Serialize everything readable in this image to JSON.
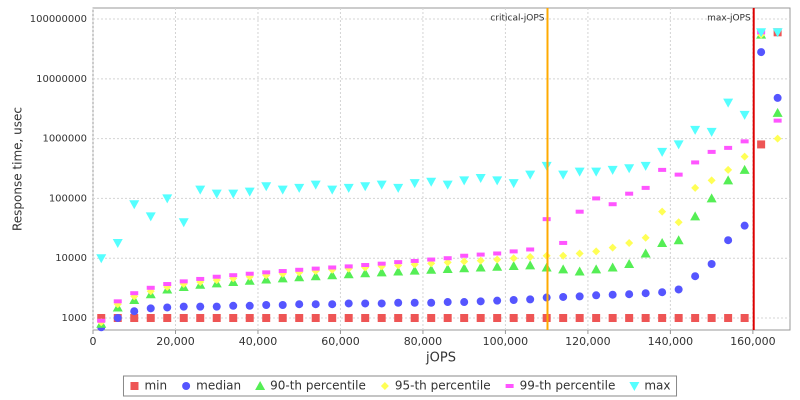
{
  "chart_data": {
    "type": "scatter",
    "y_label": "Response time, usec",
    "x_label": "jOPS",
    "log_y": true,
    "grid": true,
    "legend": "bottom",
    "xlim": [
      0,
      169000
    ],
    "ylim": [
      630,
      153000000
    ],
    "xticks": [
      0,
      {
        "value": 20000,
        "label": "20,000"
      },
      {
        "value": 40000,
        "label": "40,000"
      },
      {
        "value": 60000,
        "label": "60,000"
      },
      {
        "value": 80000,
        "label": "80,000"
      },
      {
        "value": 100000,
        "label": "100,000"
      },
      {
        "value": 120000,
        "label": "120,000"
      },
      {
        "value": 140000,
        "label": "140,000"
      },
      {
        "value": 160000,
        "label": "160,000"
      }
    ],
    "yticks": [
      1000,
      10000,
      100000,
      1000000,
      10000000,
      100000000
    ],
    "annotations": [
      {
        "label": "critical-jOPS",
        "x": 110200,
        "color": "#ffaa00"
      },
      {
        "label": "max-jOPS",
        "x": 160200,
        "color": "#dd0000"
      }
    ],
    "x": [
      2000,
      6000,
      10000,
      14000,
      18000,
      22000,
      26000,
      30000,
      34000,
      38000,
      42000,
      46000,
      50000,
      54000,
      58000,
      62000,
      66000,
      70000,
      74000,
      78000,
      82000,
      86000,
      90000,
      94000,
      98000,
      102000,
      106000,
      110000,
      114000,
      118000,
      122000,
      126000,
      130000,
      134000,
      138000,
      142000,
      146000,
      150000,
      154000,
      158000,
      162000,
      166000
    ],
    "series": [
      {
        "name": "min",
        "color": "#ee5555",
        "marker": "square",
        "values": [
          1000,
          1000,
          1000,
          1000,
          1000,
          1000,
          1000,
          1000,
          1000,
          1000,
          1000,
          1000,
          1000,
          1000,
          1000,
          1000,
          1000,
          1000,
          1000,
          1000,
          1000,
          1000,
          1000,
          1000,
          1000,
          1000,
          1000,
          1000,
          1000,
          1000,
          1000,
          1000,
          1000,
          1000,
          1000,
          1000,
          1000,
          1000,
          1000,
          1000,
          800000,
          60000000
        ]
      },
      {
        "name": "median",
        "color": "#5555ff",
        "marker": "circle",
        "values": [
          700,
          1000,
          1300,
          1450,
          1500,
          1550,
          1550,
          1550,
          1600,
          1600,
          1650,
          1650,
          1700,
          1700,
          1700,
          1750,
          1750,
          1750,
          1800,
          1800,
          1800,
          1850,
          1850,
          1900,
          1950,
          2000,
          2050,
          2200,
          2250,
          2300,
          2400,
          2450,
          2500,
          2600,
          2700,
          3000,
          5000,
          8000,
          20000,
          35000,
          28000000,
          4800000
        ]
      },
      {
        "name": "90-th percentile",
        "color": "#55ee55",
        "marker": "triangle-up",
        "values": [
          800,
          1500,
          2000,
          2500,
          3000,
          3300,
          3600,
          3800,
          4000,
          4200,
          4400,
          4600,
          4800,
          5000,
          5200,
          5400,
          5600,
          5800,
          6000,
          6200,
          6400,
          6600,
          6800,
          7000,
          7200,
          7400,
          7600,
          7000,
          6500,
          6000,
          6500,
          7000,
          8000,
          12000,
          18000,
          20000,
          50000,
          100000,
          200000,
          300000,
          55000000,
          2700000
        ]
      },
      {
        "name": "95-th percentile",
        "color": "#ffff55",
        "marker": "diamond",
        "values": [
          850,
          1700,
          2300,
          2800,
          3300,
          3700,
          4000,
          4300,
          4600,
          4900,
          5200,
          5500,
          5800,
          6100,
          6400,
          6700,
          7000,
          7300,
          7600,
          7900,
          8200,
          8500,
          8800,
          9100,
          9500,
          10000,
          10500,
          11000,
          11000,
          12000,
          13000,
          15000,
          18000,
          22000,
          60000,
          40000,
          150000,
          200000,
          300000,
          500000,
          55000000,
          1000000
        ]
      },
      {
        "name": "99-th percentile",
        "color": "#ff55ff",
        "marker": "rect",
        "values": [
          900,
          1900,
          2600,
          3200,
          3700,
          4100,
          4500,
          4900,
          5200,
          5500,
          5800,
          6100,
          6400,
          6700,
          7000,
          7300,
          7700,
          8100,
          8600,
          9000,
          9500,
          10000,
          11000,
          11500,
          12000,
          13000,
          14000,
          45000,
          18000,
          60000,
          100000,
          80000,
          120000,
          150000,
          300000,
          250000,
          400000,
          600000,
          700000,
          900000,
          60000000,
          2000000
        ]
      },
      {
        "name": "max",
        "color": "#55ffff",
        "marker": "triangle-down",
        "values": [
          10000,
          18000,
          80000,
          50000,
          100000,
          40000,
          140000,
          120000,
          120000,
          130000,
          160000,
          140000,
          150000,
          170000,
          140000,
          150000,
          160000,
          170000,
          150000,
          180000,
          190000,
          170000,
          200000,
          220000,
          200000,
          180000,
          250000,
          350000,
          250000,
          280000,
          280000,
          300000,
          320000,
          350000,
          600000,
          800000,
          1400000,
          1300000,
          4000000,
          2500000,
          60000000,
          60000000
        ]
      }
    ]
  }
}
